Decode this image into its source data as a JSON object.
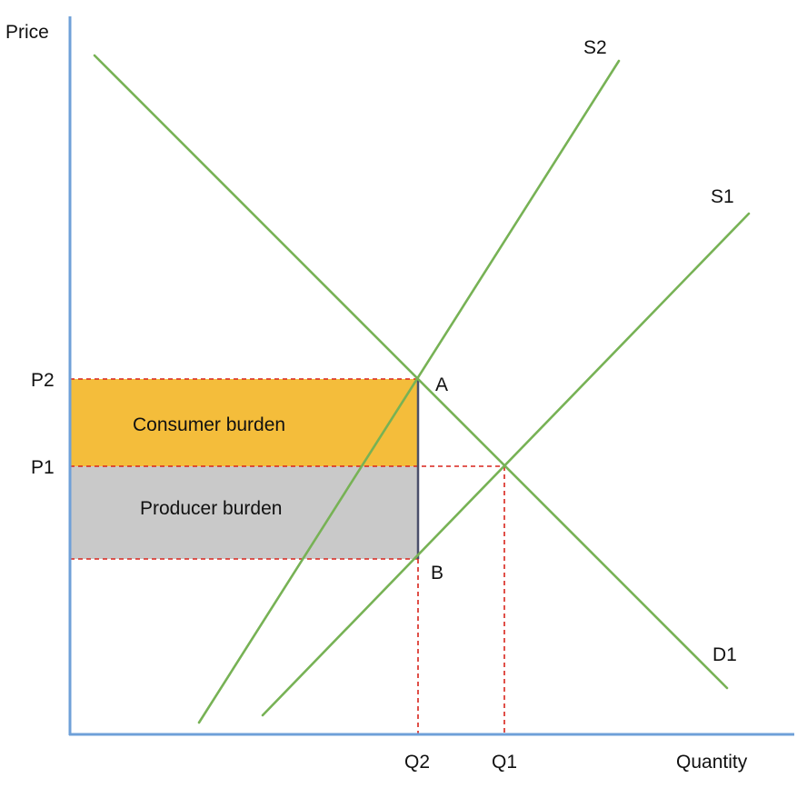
{
  "axes": {
    "y_label": "Price",
    "x_label": "Quantity"
  },
  "curves": {
    "s2_label": "S2",
    "s1_label": "S1",
    "d1_label": "D1"
  },
  "points": {
    "a_label": "A",
    "b_label": "B"
  },
  "price_labels": {
    "p2": "P2",
    "p1": "P1"
  },
  "quantity_labels": {
    "q2": "Q2",
    "q1": "Q1"
  },
  "areas": {
    "consumer_burden": "Consumer burden",
    "producer_burden": "Producer burden"
  },
  "colors": {
    "axis": "#6fa0d8",
    "curve": "#77b255",
    "consumer_fill": "#f4bd3b",
    "producer_fill": "#c9c9c9",
    "guide_dash": "#d9241c",
    "tax_wedge": "#4a4f6a"
  }
}
